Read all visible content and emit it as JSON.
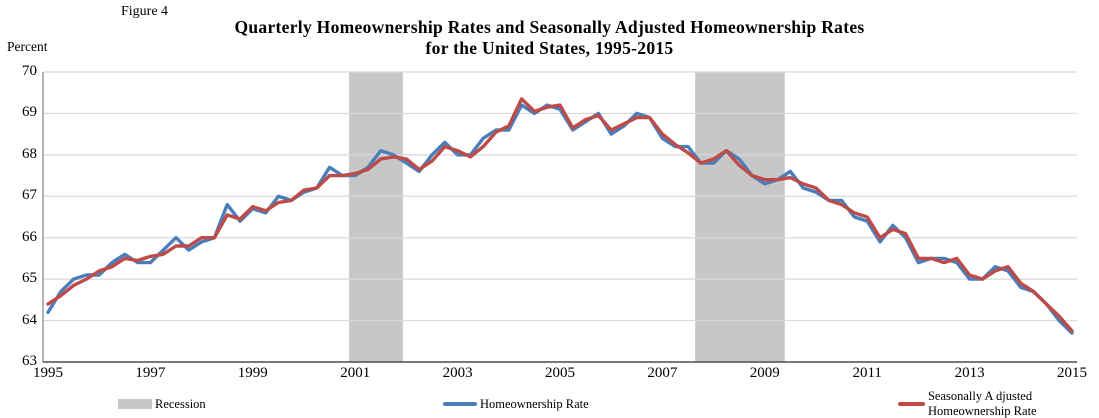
{
  "figure_label": "Figure 4",
  "title_line1": "Quarterly Homeownership Rates and Seasonally Adjusted Homeownership Rates",
  "title_line2": "for the United States, 1995-2015",
  "y_axis_unit_label": "Percent",
  "legend": {
    "recession": "Recession",
    "homeownership": "Homeownership Rate",
    "seasonally_adjusted": "Seasonally A djusted Homeownership Rate"
  },
  "colors": {
    "blue": "#4A7EBB",
    "red": "#BE4B48",
    "recession_band": "#C7C7C7",
    "gridline": "#D9D9D9",
    "y_axis": "#9B9B9B",
    "x_axis": "#4D4D4D"
  },
  "chart_data": {
    "type": "line",
    "title": "Quarterly Homeownership Rates and Seasonally Adjusted Homeownership Rates for the United States, 1995-2015",
    "ylabel": "Percent",
    "ylim": [
      63,
      70
    ],
    "y_ticks": [
      63,
      64,
      65,
      66,
      67,
      68,
      69,
      70
    ],
    "x_tick_years": [
      1995,
      1997,
      1999,
      2001,
      2003,
      2005,
      2007,
      2009,
      2011,
      2013,
      2015
    ],
    "x_start_year": 1995,
    "x_step_quarters": 0.25,
    "grid": "horizontal",
    "legend_position": "bottom",
    "recessions": [
      {
        "start": 2000.88,
        "end": 2001.93
      },
      {
        "start": 2007.64,
        "end": 2009.39
      }
    ],
    "series": [
      {
        "name": "Homeownership Rate",
        "color_key": "blue",
        "values": [
          64.2,
          64.7,
          65.0,
          65.1,
          65.1,
          65.4,
          65.6,
          65.4,
          65.4,
          65.7,
          66.0,
          65.7,
          65.9,
          66.0,
          66.8,
          66.4,
          66.7,
          66.6,
          67.0,
          66.9,
          67.1,
          67.2,
          67.7,
          67.5,
          67.5,
          67.7,
          68.1,
          68.0,
          67.8,
          67.6,
          68.0,
          68.3,
          68.0,
          68.0,
          68.4,
          68.6,
          68.6,
          69.2,
          69.0,
          69.2,
          69.1,
          68.6,
          68.8,
          69.0,
          68.5,
          68.7,
          69.0,
          68.9,
          68.4,
          68.2,
          68.2,
          67.8,
          67.8,
          68.1,
          67.9,
          67.5,
          67.3,
          67.4,
          67.6,
          67.2,
          67.1,
          66.9,
          66.9,
          66.5,
          66.4,
          65.9,
          66.3,
          66.0,
          65.4,
          65.5,
          65.5,
          65.4,
          65.0,
          65.0,
          65.3,
          65.2,
          64.8,
          64.7,
          64.4,
          64.0,
          63.7
        ]
      },
      {
        "name": "Seasonally Adjusted Homeownership Rate",
        "color_key": "red",
        "values": [
          64.4,
          64.6,
          64.85,
          65.0,
          65.2,
          65.3,
          65.5,
          65.45,
          65.55,
          65.6,
          65.8,
          65.8,
          66.0,
          66.0,
          66.55,
          66.45,
          66.75,
          66.65,
          66.85,
          66.9,
          67.15,
          67.2,
          67.5,
          67.5,
          67.55,
          67.65,
          67.9,
          67.95,
          67.9,
          67.65,
          67.85,
          68.2,
          68.1,
          67.95,
          68.2,
          68.55,
          68.7,
          69.35,
          69.05,
          69.15,
          69.2,
          68.65,
          68.85,
          68.95,
          68.6,
          68.75,
          68.9,
          68.9,
          68.5,
          68.25,
          68.05,
          67.8,
          67.9,
          68.1,
          67.75,
          67.5,
          67.4,
          67.4,
          67.45,
          67.3,
          67.2,
          66.9,
          66.8,
          66.6,
          66.5,
          66.0,
          66.2,
          66.1,
          65.5,
          65.5,
          65.4,
          65.5,
          65.1,
          65.0,
          65.2,
          65.3,
          64.9,
          64.7,
          64.4,
          64.1,
          63.75
        ]
      }
    ]
  }
}
